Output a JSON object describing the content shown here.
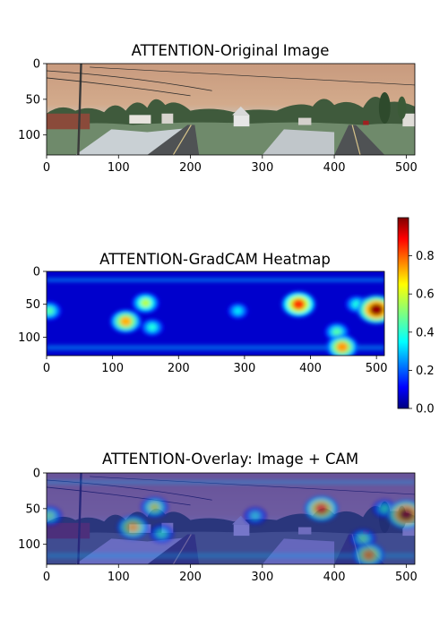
{
  "figure": {
    "panels": [
      {
        "title": "ATTENTION-Original Image"
      },
      {
        "title": "ATTENTION-GradCAM Heatmap"
      },
      {
        "title": "ATTENTION-Overlay: Image + CAM"
      }
    ]
  },
  "chart_data": [
    {
      "type": "heatmap",
      "title": "ATTENTION-Original Image",
      "content": "street panorama photo",
      "xlim": [
        0,
        512
      ],
      "ylim": [
        128,
        0
      ],
      "x_ticks": [
        0,
        100,
        200,
        300,
        400,
        500
      ],
      "y_ticks": [
        0,
        50,
        100
      ]
    },
    {
      "type": "heatmap",
      "title": "ATTENTION-GradCAM Heatmap",
      "colormap": "jet",
      "xlim": [
        0,
        512
      ],
      "ylim": [
        128,
        0
      ],
      "x_ticks": [
        0,
        100,
        200,
        300,
        400,
        500
      ],
      "y_ticks": [
        0,
        50,
        100
      ],
      "colorbar": {
        "range": [
          0.0,
          1.0
        ],
        "ticks": [
          "0.0",
          "0.2",
          "0.4",
          "0.6",
          "0.8"
        ]
      },
      "hotspots": [
        {
          "x": 500,
          "y": 58,
          "value": 0.98
        },
        {
          "x": 382,
          "y": 50,
          "value": 0.82
        },
        {
          "x": 448,
          "y": 115,
          "value": 0.72
        },
        {
          "x": 120,
          "y": 76,
          "value": 0.7
        },
        {
          "x": 150,
          "y": 48,
          "value": 0.55
        },
        {
          "x": 160,
          "y": 85,
          "value": 0.4
        },
        {
          "x": 440,
          "y": 92,
          "value": 0.45
        },
        {
          "x": 4,
          "y": 60,
          "value": 0.45
        },
        {
          "x": 290,
          "y": 60,
          "value": 0.35
        },
        {
          "x": 470,
          "y": 50,
          "value": 0.4
        }
      ]
    },
    {
      "type": "heatmap",
      "title": "ATTENTION-Overlay: Image + CAM",
      "content": "street panorama photo blended with CAM heatmap",
      "xlim": [
        0,
        512
      ],
      "ylim": [
        128,
        0
      ],
      "x_ticks": [
        0,
        100,
        200,
        300,
        400,
        500
      ],
      "y_ticks": [
        0,
        50,
        100
      ]
    }
  ]
}
